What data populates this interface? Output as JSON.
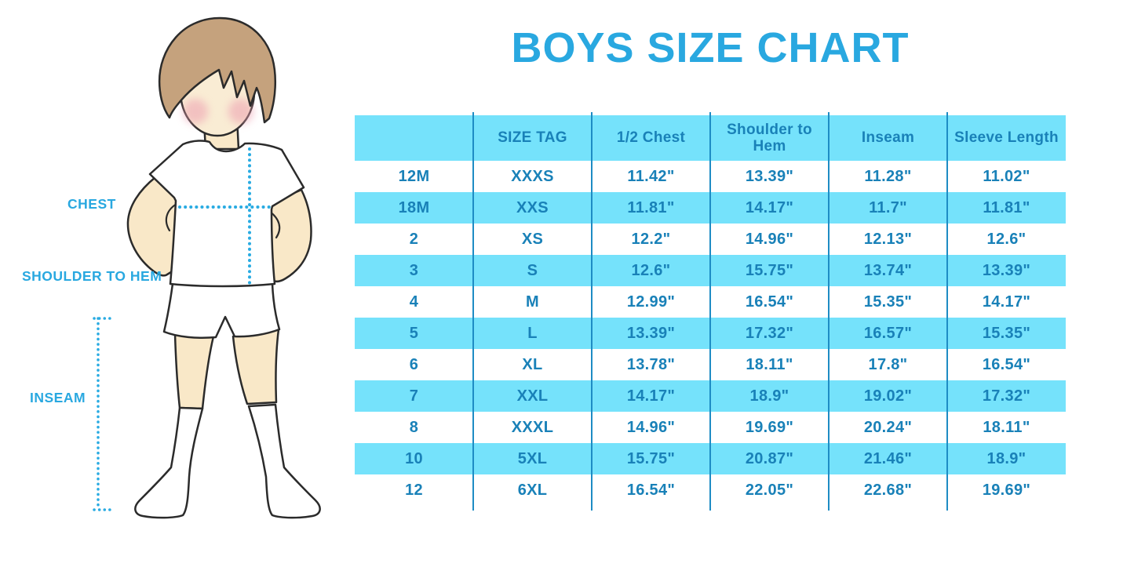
{
  "title": {
    "text": "BOYS SIZE CHART",
    "color": "#29A8E0"
  },
  "figure": {
    "labels": {
      "chest": "CHEST",
      "shoulder_to_hem": "SHOULDER TO HEM",
      "inseam": "INSEAM"
    },
    "label_color": "#29A8E0",
    "dotted_line_color": "#29ABE2",
    "skin_color": "#F9E8C8",
    "hair_color": "#C5A27D",
    "outline_color": "#2b2b2b",
    "blush_color": "#ED9FB0"
  },
  "chart_data": {
    "type": "table",
    "title": "BOYS SIZE CHART",
    "units": "inches",
    "columns": [
      "",
      "SIZE TAG",
      "1/2 Chest",
      "Shoulder to Hem",
      "Inseam",
      "Sleeve Length"
    ],
    "rows": [
      [
        "12M",
        "XXXS",
        "11.42\"",
        "13.39\"",
        "11.28\"",
        "11.02\""
      ],
      [
        "18M",
        "XXS",
        "11.81\"",
        "14.17\"",
        "11.7\"",
        "11.81\""
      ],
      [
        "2",
        "XS",
        "12.2\"",
        "14.96\"",
        "12.13\"",
        "12.6\""
      ],
      [
        "3",
        "S",
        "12.6\"",
        "15.75\"",
        "13.74\"",
        "13.39\""
      ],
      [
        "4",
        "M",
        "12.99\"",
        "16.54\"",
        "15.35\"",
        "14.17\""
      ],
      [
        "5",
        "L",
        "13.39\"",
        "17.32\"",
        "16.57\"",
        "15.35\""
      ],
      [
        "6",
        "XL",
        "13.78\"",
        "18.11\"",
        "17.8\"",
        "16.54\""
      ],
      [
        "7",
        "XXL",
        "14.17\"",
        "18.9\"",
        "19.02\"",
        "17.32\""
      ],
      [
        "8",
        "XXXL",
        "14.96\"",
        "19.69\"",
        "20.24\"",
        "18.11\""
      ],
      [
        "10",
        "5XL",
        "15.75\"",
        "20.87\"",
        "21.46\"",
        "18.9\""
      ],
      [
        "12",
        "6XL",
        "16.54\"",
        "22.05\"",
        "22.68\"",
        "19.69\""
      ]
    ],
    "striped_row_color": "#75E2FB",
    "header_background": "#75E2FB",
    "text_color": "#1981B8",
    "grid_line_color": "#1E8CC4",
    "stripe_pattern": "header and alternate rows (18M, 3, 5, 7, 10) are blue"
  }
}
